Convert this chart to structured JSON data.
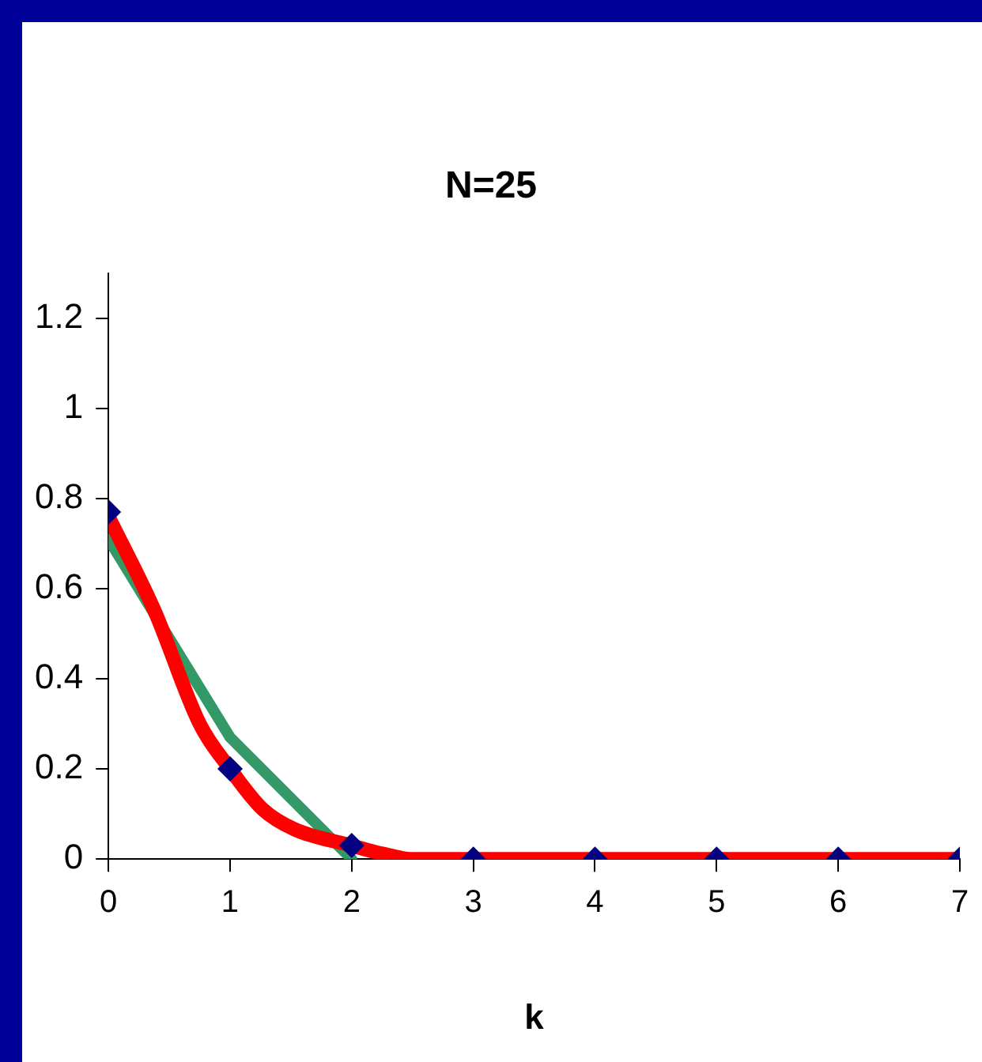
{
  "chart_data": {
    "type": "line",
    "title": "N=25",
    "xlabel": "k",
    "xlim": [
      0,
      7
    ],
    "xticks": [
      0,
      1,
      2,
      3,
      4,
      5,
      6,
      7
    ],
    "ylim": [
      0,
      1.3
    ],
    "yticks": [
      0,
      0.2,
      0.4,
      0.6,
      0.8,
      1,
      1.2
    ],
    "series": [
      {
        "color": "#339966",
        "marker": "none",
        "x": [
          0,
          1,
          2
        ],
        "values": [
          0.71,
          0.27,
          0
        ]
      },
      {
        "color": "#ff0000",
        "marker": "none",
        "x": [
          0,
          0.38,
          0.75,
          1,
          1.27,
          1.53,
          2,
          2.25,
          2.5,
          7
        ],
        "values": [
          0.76,
          0.55,
          0.3,
          0.2,
          0.11,
          0.066,
          0.03,
          0.012,
          0,
          0
        ]
      },
      {
        "type": "scatter",
        "color": "#000080",
        "marker": "diamond",
        "x": [
          0,
          1,
          2,
          3,
          4,
          5,
          6,
          7
        ],
        "values": [
          0.77,
          0.2,
          0.03,
          0,
          0,
          0,
          0,
          0
        ]
      }
    ]
  }
}
